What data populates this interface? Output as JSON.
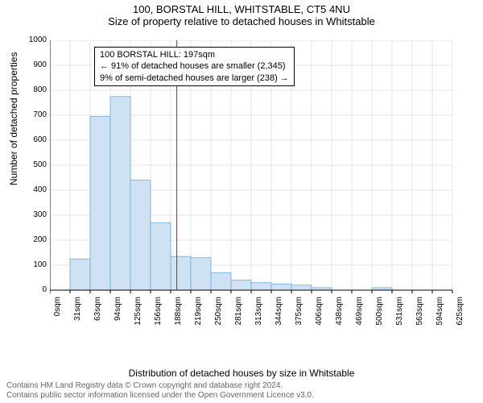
{
  "title_line1": "100, BORSTAL HILL, WHITSTABLE, CT5 4NU",
  "title_line2": "Size of property relative to detached houses in Whitstable",
  "y_axis_label": "Number of detached properties",
  "x_axis_label": "Distribution of detached houses by size in Whitstable",
  "footer_line1": "Contains HM Land Registry data © Crown copyright and database right 2024.",
  "footer_line2": "Contains public sector information licensed under the Open Government Licence v3.0.",
  "chart": {
    "type": "histogram",
    "background_color": "#ffffff",
    "grid_color": "#cccccc",
    "axis_color": "#000000",
    "bar_fill": "#cfe2f3",
    "bar_stroke": "#6fa8dc",
    "marker_line_color": "#ff0000",
    "marker_value": 197,
    "ylim": [
      0,
      1000
    ],
    "ytick_step": 100,
    "x_categories": [
      "0sqm",
      "31sqm",
      "63sqm",
      "94sqm",
      "125sqm",
      "156sqm",
      "188sqm",
      "219sqm",
      "250sqm",
      "281sqm",
      "313sqm",
      "344sqm",
      "375sqm",
      "406sqm",
      "438sqm",
      "469sqm",
      "500sqm",
      "531sqm",
      "563sqm",
      "594sqm",
      "625sqm"
    ],
    "values": [
      0,
      125,
      695,
      775,
      440,
      270,
      135,
      130,
      70,
      40,
      30,
      25,
      20,
      10,
      0,
      0,
      10,
      0,
      0,
      0
    ],
    "annotation": {
      "line1": "100 BORSTAL HILL: 197sqm",
      "line2": "← 91% of detached houses are smaller (2,345)",
      "line3": "9% of semi-detached houses are larger (238) →"
    }
  }
}
